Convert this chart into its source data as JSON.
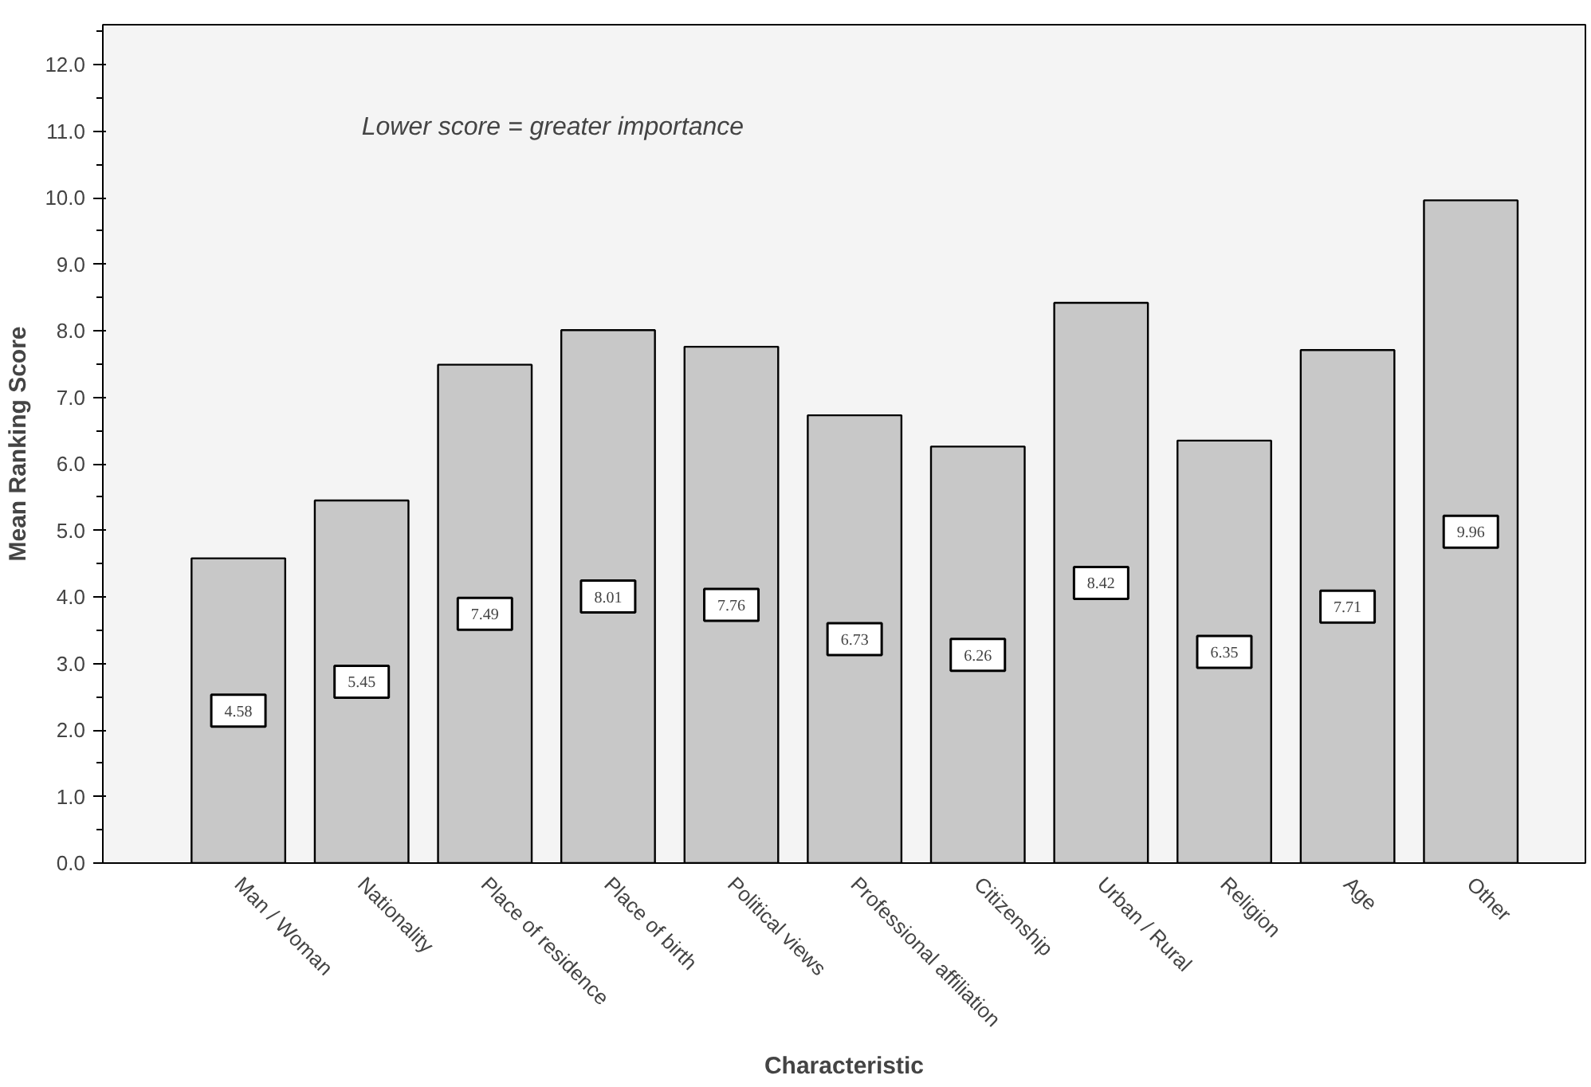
{
  "chart_data": {
    "type": "bar",
    "xlabel": "Characteristic",
    "ylabel": "Mean Ranking Score",
    "categories": [
      "Man / Woman",
      "Nationality",
      "Place of residence",
      "Place of birth",
      "Political views",
      "Professional affiliation",
      "Citizenship",
      "Urban / Rural",
      "Religion",
      "Age",
      "Other"
    ],
    "values": [
      4.58,
      5.45,
      7.49,
      8.01,
      7.76,
      6.73,
      6.26,
      8.42,
      6.35,
      7.71,
      9.96
    ],
    "color": "#c8c8c8",
    "data_labels": true,
    "grid": false,
    "ylim": [
      0,
      12.6
    ],
    "yticks": [
      {
        "value": 0,
        "label": "0.0"
      },
      {
        "value": 1,
        "label": "1.0"
      },
      {
        "value": 2,
        "label": "2.0"
      },
      {
        "value": 3,
        "label": "3.0"
      },
      {
        "value": 4,
        "label": "4.0"
      },
      {
        "value": 5,
        "label": "5.0"
      },
      {
        "value": 6,
        "label": "6.0"
      },
      {
        "value": 7,
        "label": "7.0"
      },
      {
        "value": 8,
        "label": "8.0"
      },
      {
        "value": 9,
        "label": "9.0"
      },
      {
        "value": 10,
        "label": "10.0"
      },
      {
        "value": 11,
        "label": "11.0"
      },
      {
        "value": 12,
        "label": "12.0"
      }
    ],
    "annotations": [
      "Lower score = greater importance"
    ]
  }
}
